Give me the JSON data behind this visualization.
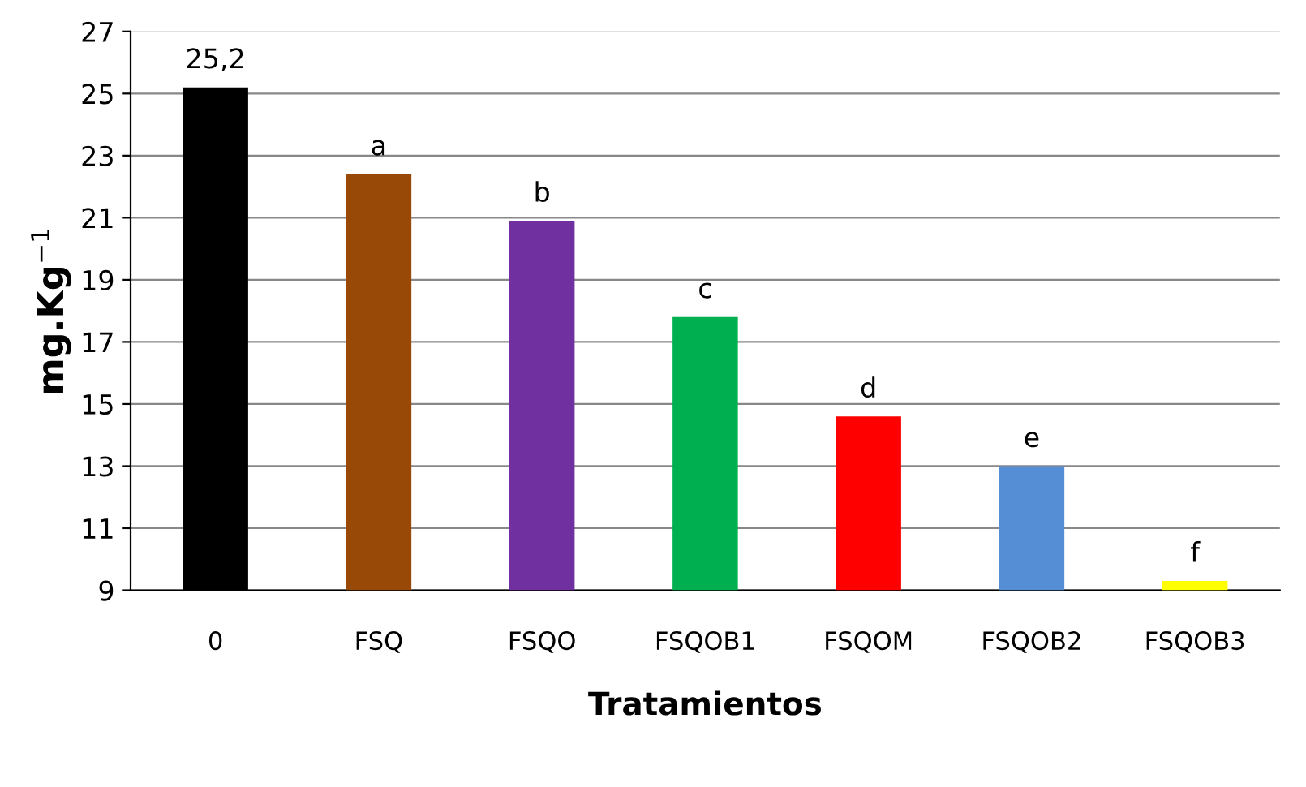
{
  "chart_data": {
    "type": "bar",
    "xlabel": "Tratamientos",
    "ylabel": "mg.Kg$^{−1}$",
    "categories": [
      "0",
      "FSQ",
      "FSQO",
      "FSQOB1",
      "FSQOM",
      "FSQOB2",
      "FSQOB3"
    ],
    "values": [
      25.2,
      22.4,
      20.9,
      17.8,
      14.6,
      13.0,
      9.3
    ],
    "colors": [
      "#000000",
      "#984807",
      "#7030a0",
      "#00b050",
      "#ff0000",
      "#558ed5",
      "#ffff00"
    ],
    "value_labels": [
      "25,2",
      "a",
      "b",
      "c",
      "d",
      "e",
      "f"
    ],
    "ylim": [
      9,
      27
    ],
    "yticks": [
      9,
      11,
      13,
      15,
      17,
      19,
      21,
      23,
      25,
      27
    ],
    "grid": "y"
  }
}
